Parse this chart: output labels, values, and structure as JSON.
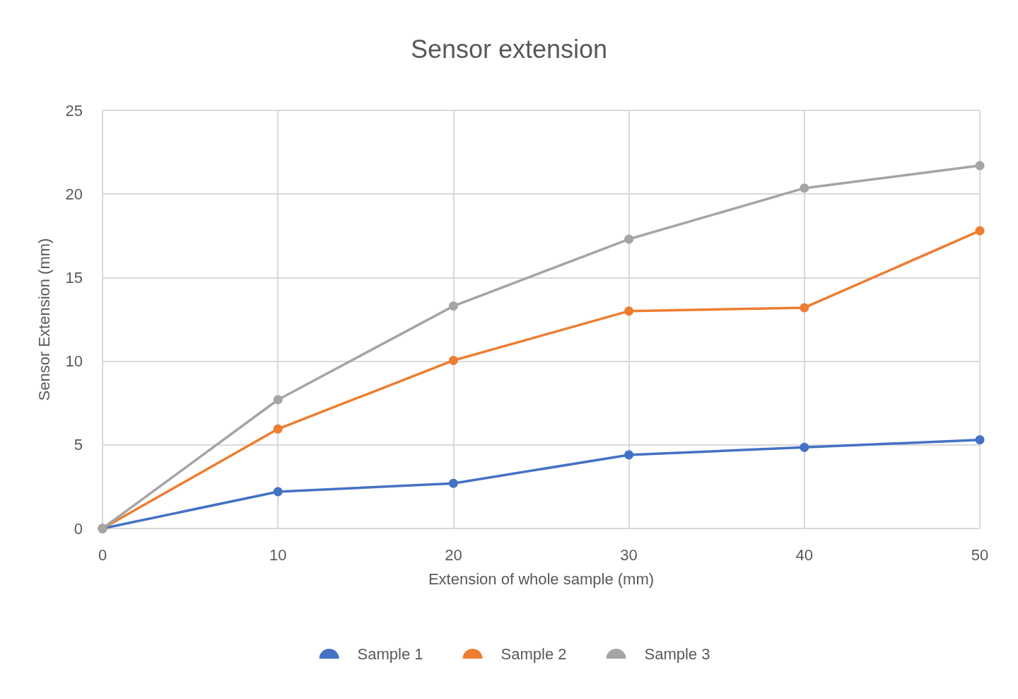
{
  "chart_data": {
    "type": "line",
    "title": "Sensor extension",
    "xlabel": "Extension of whole sample (mm)",
    "ylabel": "Sensor Extension (mm)",
    "x": [
      0,
      10,
      20,
      30,
      40,
      50
    ],
    "series": [
      {
        "name": "Sample 1",
        "color": "#4472c4",
        "values": [
          0,
          2.2,
          2.7,
          4.4,
          4.85,
          5.3
        ]
      },
      {
        "name": "Sample 2",
        "color": "#ed7d31",
        "values": [
          0,
          5.95,
          10.05,
          13.0,
          13.2,
          17.8
        ]
      },
      {
        "name": "Sample 3",
        "color": "#a5a5a5",
        "values": [
          0,
          7.7,
          13.3,
          17.3,
          20.35,
          21.7
        ]
      }
    ],
    "xlim": [
      0,
      50
    ],
    "xticks": [
      0,
      10,
      20,
      30,
      40,
      50
    ],
    "ylim": [
      0,
      25
    ],
    "yticks": [
      0,
      5,
      10,
      15,
      20,
      25
    ],
    "grid": true,
    "legend": "bottom",
    "marker": "circle",
    "line_style": "solid"
  }
}
